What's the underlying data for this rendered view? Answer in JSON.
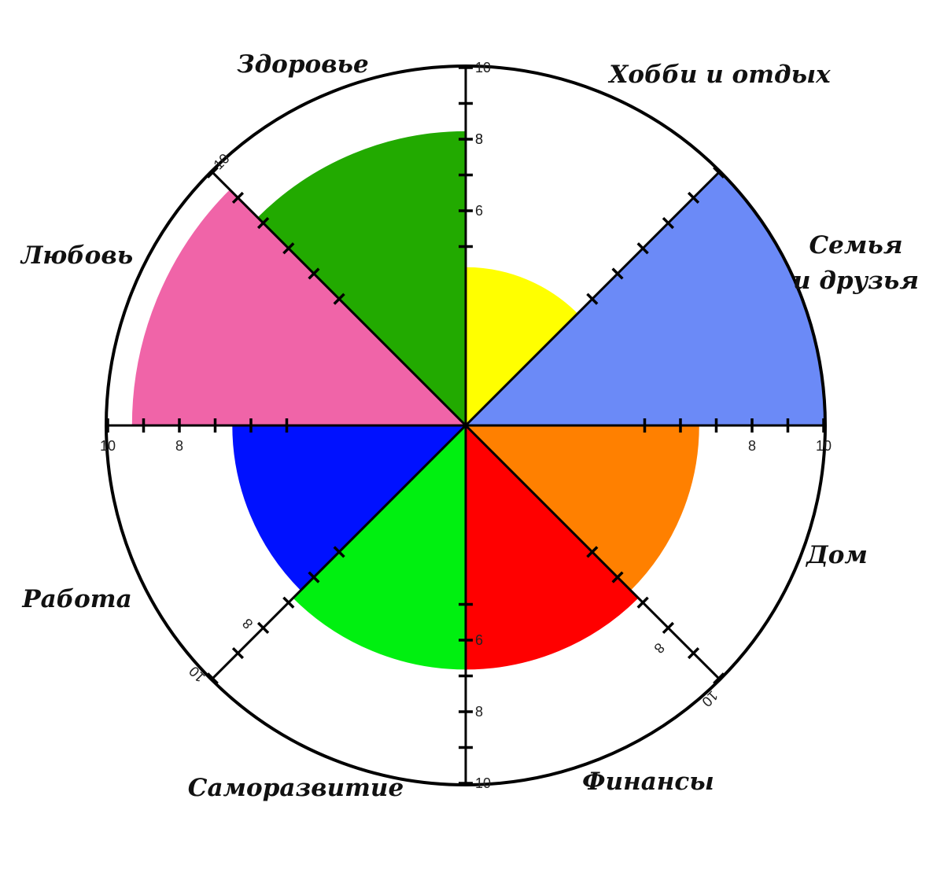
{
  "chart_data": {
    "type": "pie",
    "subtype": "wheel-of-life polar area",
    "max": 10,
    "grid": false,
    "categories": [
      {
        "label": "Хобби и отдых",
        "value": 4.4,
        "color": "#ffff00"
      },
      {
        "label": "Семья и друзья",
        "label_lines": [
          "Семья",
          "и друзья"
        ],
        "value": 10,
        "color": "#6b8af7"
      },
      {
        "label": "Дом",
        "value": 6.5,
        "color": "#ff8000"
      },
      {
        "label": "Финансы",
        "value": 6.8,
        "color": "#ff0000"
      },
      {
        "label": "Саморазвитие",
        "value": 6.8,
        "color": "#00f010"
      },
      {
        "label": "Работа",
        "value": 6.5,
        "color": "#0011ff"
      },
      {
        "label": "Любовь",
        "value": 9.3,
        "color": "#f064a8"
      },
      {
        "label": "Здоровье",
        "value": 8.2,
        "color": "#22aa00"
      }
    ],
    "axes": [
      {
        "direction": "up",
        "tick_labels": [
          "6",
          "8",
          "10"
        ]
      },
      {
        "direction": "upper-right",
        "tick_labels": []
      },
      {
        "direction": "right",
        "tick_labels": [
          "8",
          "10"
        ]
      },
      {
        "direction": "lower-right",
        "tick_labels": [
          "8",
          "10"
        ]
      },
      {
        "direction": "down",
        "tick_labels": [
          "6",
          "8",
          "10"
        ]
      },
      {
        "direction": "lower-left",
        "tick_labels": [
          "8",
          "10"
        ]
      },
      {
        "direction": "left",
        "tick_labels": [
          "10",
          "8"
        ]
      },
      {
        "direction": "upper-left",
        "tick_labels": [
          "10"
        ]
      }
    ],
    "up_axis_extra_labels": [
      "8"
    ]
  }
}
